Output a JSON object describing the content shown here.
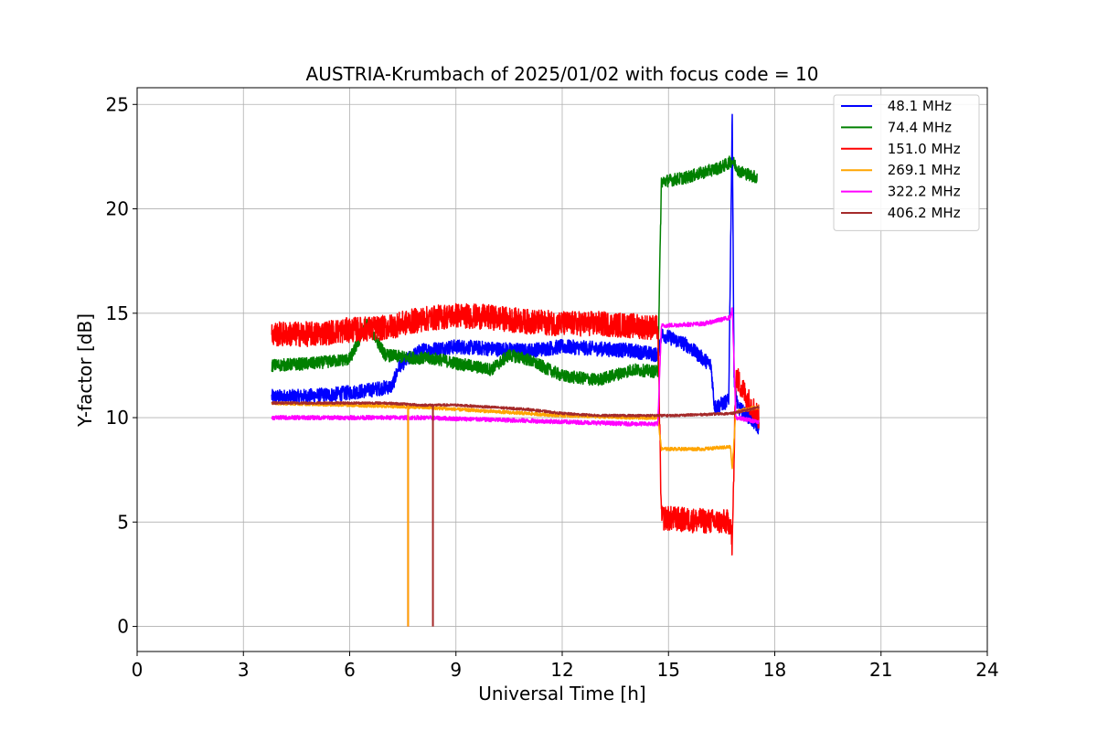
{
  "chart_data": {
    "type": "line",
    "title": "AUSTRIA-Krumbach of 2025/01/02 with focus code = 10",
    "xlabel": "Universal Time [h]",
    "ylabel": "Y-factor [dB]",
    "xlim": [
      0,
      24
    ],
    "ylim": [
      -1.2,
      25.8
    ],
    "xticks": [
      0,
      3,
      6,
      9,
      12,
      15,
      18,
      21,
      24
    ],
    "yticks": [
      0,
      5,
      10,
      15,
      20,
      25
    ],
    "grid": true,
    "legend_position": "top-right",
    "series": [
      {
        "name": " 48.1 MHz",
        "color": "#0000ff",
        "noise": 0.35,
        "x": [
          3.8,
          4.5,
          5.5,
          6.5,
          7.2,
          7.4,
          8.0,
          9.0,
          10.0,
          11.0,
          12.0,
          13.0,
          14.0,
          14.7,
          14.8,
          15.5,
          16.2,
          16.3,
          16.7,
          16.8,
          16.85,
          16.95,
          17.3,
          17.55
        ],
        "y": [
          11.0,
          11.0,
          11.1,
          11.3,
          11.5,
          12.5,
          13.2,
          13.4,
          13.3,
          13.2,
          13.4,
          13.3,
          13.2,
          13.0,
          14.0,
          13.5,
          12.5,
          10.5,
          10.8,
          24.5,
          12.0,
          10.5,
          10.0,
          9.5
        ]
      },
      {
        "name": " 74.4 MHz",
        "color": "#008000",
        "noise": 0.3,
        "x": [
          3.8,
          5.0,
          6.0,
          6.5,
          7.0,
          7.5,
          8.5,
          9.0,
          10.0,
          10.5,
          11.0,
          12.0,
          13.0,
          14.0,
          14.7,
          14.8,
          15.5,
          16.5,
          16.8,
          17.0,
          17.5
        ],
        "y": [
          12.5,
          12.6,
          12.8,
          14.5,
          13.0,
          12.9,
          12.8,
          12.6,
          12.3,
          13.0,
          12.8,
          12.0,
          11.8,
          12.3,
          12.2,
          21.3,
          21.5,
          22.0,
          22.3,
          21.8,
          21.5
        ]
      },
      {
        "name": " 151.0 MHz",
        "color": "#ff0000",
        "noise": 0.6,
        "x": [
          3.8,
          5.0,
          6.0,
          7.0,
          8.0,
          9.0,
          10.0,
          11.0,
          12.0,
          13.0,
          14.0,
          14.7,
          14.8,
          15.5,
          16.5,
          16.75,
          16.8,
          16.9,
          17.2,
          17.55
        ],
        "y": [
          14.0,
          14.0,
          14.2,
          14.3,
          14.7,
          14.9,
          14.8,
          14.6,
          14.5,
          14.5,
          14.4,
          14.3,
          5.2,
          5.1,
          5.0,
          5.0,
          3.7,
          12.0,
          11.0,
          10.0
        ]
      },
      {
        "name": " 269.1 MHz",
        "color": "#ffa500",
        "noise": 0.08,
        "x": [
          3.8,
          6.0,
          8.0,
          10.0,
          12.0,
          14.0,
          14.7,
          14.8,
          16.0,
          16.75,
          16.8,
          16.9,
          17.55
        ],
        "y": [
          10.7,
          10.6,
          10.5,
          10.3,
          10.1,
          10.0,
          10.0,
          8.5,
          8.5,
          8.6,
          7.5,
          10.3,
          10.5
        ]
      },
      {
        "name": " 322.2 MHz",
        "color": "#ff00ff",
        "noise": 0.1,
        "x": [
          3.8,
          6.0,
          8.0,
          10.0,
          12.0,
          14.0,
          14.7,
          14.8,
          16.0,
          16.75,
          16.8,
          16.9,
          17.55
        ],
        "y": [
          10.0,
          10.0,
          10.0,
          9.9,
          9.8,
          9.7,
          9.7,
          14.4,
          14.5,
          14.8,
          15.3,
          10.0,
          9.8
        ]
      },
      {
        "name": " 406.2 MHz",
        "color": "#a52a2a",
        "noise": 0.06,
        "x": [
          3.8,
          5.0,
          6.0,
          7.0,
          8.0,
          9.0,
          10.0,
          11.0,
          12.0,
          13.0,
          14.0,
          15.0,
          16.0,
          16.8,
          17.55
        ],
        "y": [
          10.7,
          10.7,
          10.7,
          10.7,
          10.6,
          10.6,
          10.5,
          10.4,
          10.2,
          10.1,
          10.1,
          10.1,
          10.15,
          10.2,
          10.5
        ]
      }
    ],
    "dropouts": [
      {
        "x": 7.65,
        "y": 0.0,
        "colors": [
          "#a52a2a",
          "#ff00ff",
          "#ffa500"
        ]
      },
      {
        "x": 8.35,
        "y": 0.0,
        "colors": [
          "#a52a2a"
        ]
      }
    ]
  }
}
